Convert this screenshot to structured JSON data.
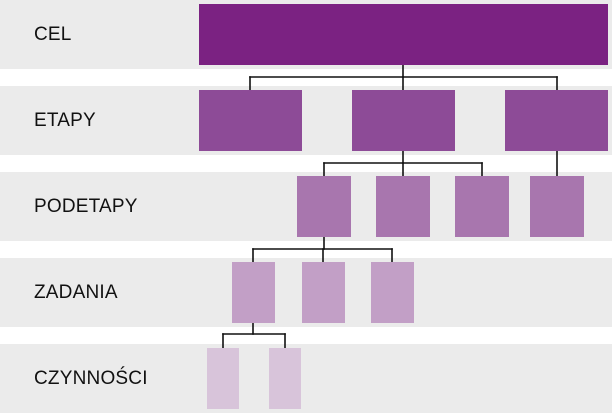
{
  "levels": [
    {
      "label": "CEL",
      "color": "#7b2282"
    },
    {
      "label": "ETAPY",
      "color": "#8d4b97"
    },
    {
      "label": "PODETAPY",
      "color": "#a876ae"
    },
    {
      "label": "ZADANIA",
      "color": "#c29fc6"
    },
    {
      "label": "CZYNNOŚCI",
      "color": "#d8c4da"
    }
  ],
  "colors": {
    "band_background": "#ebebeb",
    "connector": "#111111",
    "label_text": "#111111"
  }
}
